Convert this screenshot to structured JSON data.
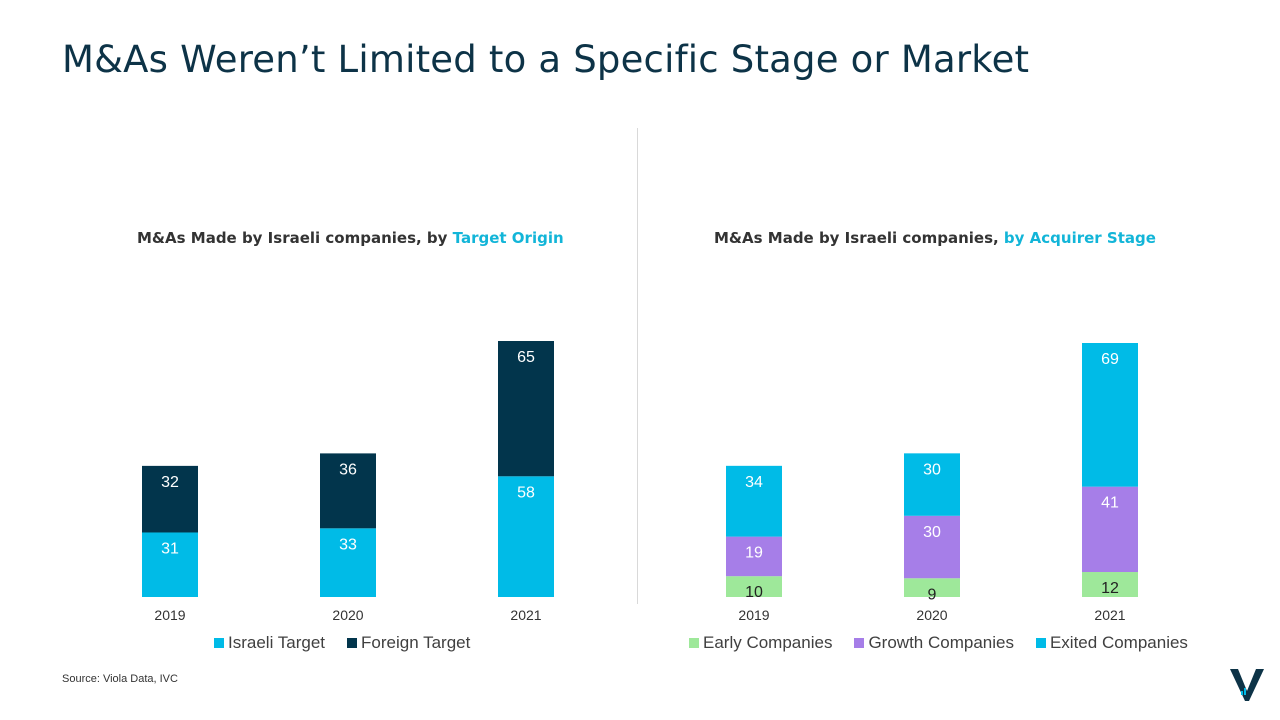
{
  "title": "M&As Weren’t Limited to a Specific Stage or Market",
  "source": "Source: Viola Data, IVC",
  "chart_data": [
    {
      "type": "bar",
      "stacked": true,
      "title_prefix": "M&As Made by Israeli companies, by ",
      "title_highlight": "Target Origin",
      "categories": [
        "2019",
        "2020",
        "2021"
      ],
      "series": [
        {
          "name": "Israeli Target",
          "values": [
            31,
            33,
            58
          ],
          "color": "#00bbe7",
          "label_color": "#ffffff"
        },
        {
          "name": "Foreign Target",
          "values": [
            32,
            36,
            65
          ],
          "color": "#02354c",
          "label_color": "#ffffff"
        }
      ],
      "ylim": [
        0,
        123
      ],
      "grid": false,
      "legend": "bottom"
    },
    {
      "type": "bar",
      "stacked": true,
      "title_prefix": "M&As Made by Israeli companies, ",
      "title_highlight": "by Acquirer Stage",
      "categories": [
        "2019",
        "2020",
        "2021"
      ],
      "series": [
        {
          "name": "Early Companies",
          "values": [
            10,
            9,
            12
          ],
          "color": "#9ee89a",
          "label_color": "#222222"
        },
        {
          "name": "Growth Companies",
          "values": [
            19,
            30,
            41
          ],
          "color": "#a67ee8",
          "label_color": "#ffffff"
        },
        {
          "name": "Exited Companies",
          "values": [
            34,
            30,
            69
          ],
          "color": "#00bbe7",
          "label_color": "#ffffff"
        }
      ],
      "ylim": [
        0,
        122
      ],
      "grid": false,
      "legend": "bottom"
    }
  ]
}
